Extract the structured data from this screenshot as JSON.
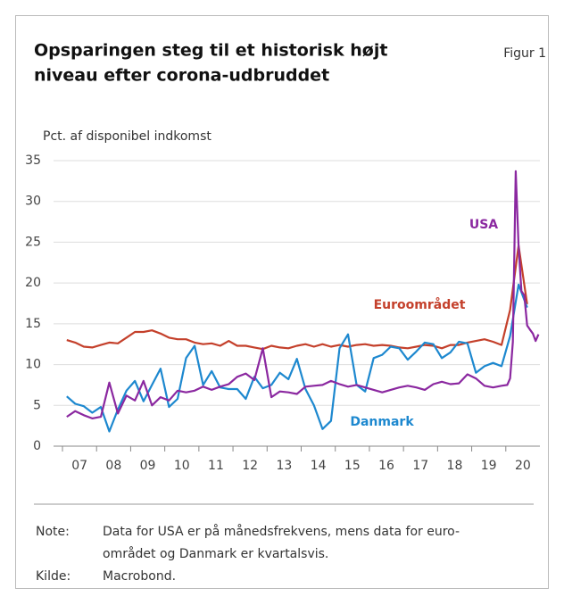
{
  "chart_data": {
    "type": "line",
    "title": [
      "Opsparingen steg til et historisk højt",
      "niveau efter corona-udbruddet"
    ],
    "figure_label": "Figur 1",
    "y_axis_label": "Pct. af disponibel indkomst",
    "ylim": [
      0,
      35
    ],
    "yticks": [
      0,
      5,
      10,
      15,
      20,
      25,
      30,
      35
    ],
    "xlim": [
      2007,
      2021
    ],
    "xticks": [
      {
        "value": 2007.5,
        "label": "07"
      },
      {
        "value": 2008.5,
        "label": "08"
      },
      {
        "value": 2009.5,
        "label": "09"
      },
      {
        "value": 2010.5,
        "label": "10"
      },
      {
        "value": 2011.5,
        "label": "11"
      },
      {
        "value": 2012.5,
        "label": "12"
      },
      {
        "value": 2013.5,
        "label": "13"
      },
      {
        "value": 2014.5,
        "label": "14"
      },
      {
        "value": 2015.5,
        "label": "15"
      },
      {
        "value": 2016.5,
        "label": "16"
      },
      {
        "value": 2017.5,
        "label": "17"
      },
      {
        "value": 2018.5,
        "label": "18"
      },
      {
        "value": 2019.5,
        "label": "19"
      },
      {
        "value": 2020.5,
        "label": "20"
      }
    ],
    "grid": true,
    "x": [
      2007.125,
      2007.375,
      2007.625,
      2007.875,
      2008.125,
      2008.375,
      2008.625,
      2008.875,
      2009.125,
      2009.375,
      2009.625,
      2009.875,
      2010.125,
      2010.375,
      2010.625,
      2010.875,
      2011.125,
      2011.375,
      2011.625,
      2011.875,
      2012.125,
      2012.375,
      2012.625,
      2012.875,
      2013.125,
      2013.375,
      2013.625,
      2013.875,
      2014.125,
      2014.375,
      2014.625,
      2014.875,
      2015.125,
      2015.375,
      2015.625,
      2015.875,
      2016.125,
      2016.375,
      2016.625,
      2016.875,
      2017.125,
      2017.375,
      2017.625,
      2017.875,
      2018.125,
      2018.375,
      2018.625,
      2018.875,
      2019.125,
      2019.375,
      2019.625,
      2019.875,
      2020.125,
      2020.375,
      2020.625
    ],
    "series": [
      {
        "name": "Euroområdet",
        "color": "#c4402b",
        "values": [
          13.0,
          12.7,
          12.2,
          12.1,
          12.4,
          12.7,
          12.6,
          13.3,
          14.0,
          14.0,
          14.2,
          13.8,
          13.3,
          13.1,
          13.1,
          12.7,
          12.5,
          12.6,
          12.3,
          12.9,
          12.3,
          12.3,
          12.1,
          11.9,
          12.3,
          12.1,
          12.0,
          12.3,
          12.5,
          12.2,
          12.5,
          12.2,
          12.4,
          12.2,
          12.4,
          12.5,
          12.3,
          12.4,
          12.3,
          12.1,
          12.0,
          12.2,
          12.4,
          12.3,
          12.0,
          12.4,
          12.4,
          12.7,
          12.9,
          13.1,
          12.8,
          12.4,
          16.7,
          24.6,
          17.4
        ]
      },
      {
        "name": "Danmark",
        "color": "#1d88cf",
        "values": [
          6.1,
          5.2,
          4.9,
          4.1,
          4.8,
          1.8,
          4.5,
          6.8,
          8.0,
          5.5,
          7.5,
          9.5,
          4.8,
          5.8,
          10.8,
          12.3,
          7.5,
          9.2,
          7.2,
          7.0,
          7.0,
          5.8,
          8.5,
          7.1,
          7.5,
          9.0,
          8.2,
          10.7,
          7.0,
          5.0,
          2.1,
          3.1,
          12.0,
          13.7,
          7.5,
          6.7,
          10.8,
          11.2,
          12.2,
          12.0,
          10.6,
          11.6,
          12.7,
          12.5,
          10.8,
          11.5,
          12.8,
          12.6,
          9.0,
          9.8,
          10.2,
          9.8,
          13.5,
          19.8,
          17.0
        ]
      },
      {
        "name": "USA",
        "color": "#8b28a0",
        "x": [
          2007.125,
          2007.375,
          2007.625,
          2007.875,
          2008.125,
          2008.375,
          2008.625,
          2008.875,
          2009.125,
          2009.375,
          2009.625,
          2009.875,
          2010.125,
          2010.375,
          2010.625,
          2010.875,
          2011.125,
          2011.375,
          2011.625,
          2011.875,
          2012.125,
          2012.375,
          2012.625,
          2012.875,
          2013.125,
          2013.375,
          2013.625,
          2013.875,
          2014.125,
          2014.375,
          2014.625,
          2014.875,
          2015.125,
          2015.375,
          2015.625,
          2015.875,
          2016.125,
          2016.375,
          2016.625,
          2016.875,
          2017.125,
          2017.375,
          2017.625,
          2017.875,
          2018.125,
          2018.375,
          2018.625,
          2018.875,
          2019.125,
          2019.375,
          2019.625,
          2019.875,
          2020.042,
          2020.125,
          2020.208,
          2020.292,
          2020.375,
          2020.458,
          2020.542,
          2020.625,
          2020.708,
          2020.792,
          2020.875,
          2020.958
        ],
        "values": [
          3.6,
          4.3,
          3.8,
          3.4,
          3.6,
          7.8,
          4.0,
          6.2,
          5.6,
          8.0,
          5.0,
          6.0,
          5.6,
          6.8,
          6.6,
          6.8,
          7.3,
          6.9,
          7.3,
          7.6,
          8.5,
          8.9,
          8.1,
          12.0,
          6.0,
          6.7,
          6.6,
          6.4,
          7.3,
          7.4,
          7.5,
          8.0,
          7.6,
          7.3,
          7.5,
          7.2,
          6.9,
          6.6,
          6.9,
          7.2,
          7.4,
          7.2,
          6.9,
          7.6,
          7.9,
          7.6,
          7.7,
          8.8,
          8.3,
          7.4,
          7.2,
          7.4,
          7.5,
          8.3,
          12.8,
          33.7,
          24.5,
          19.0,
          18.5,
          14.8,
          14.3,
          13.8,
          12.9,
          13.7
        ]
      }
    ],
    "note_label": "Note:",
    "note": [
      "Data for USA er på månedsfrekvens, mens data for euro-",
      "området og Danmark er kvartalsvis."
    ],
    "source_label": "Kilde:",
    "source": "Macrobond."
  }
}
